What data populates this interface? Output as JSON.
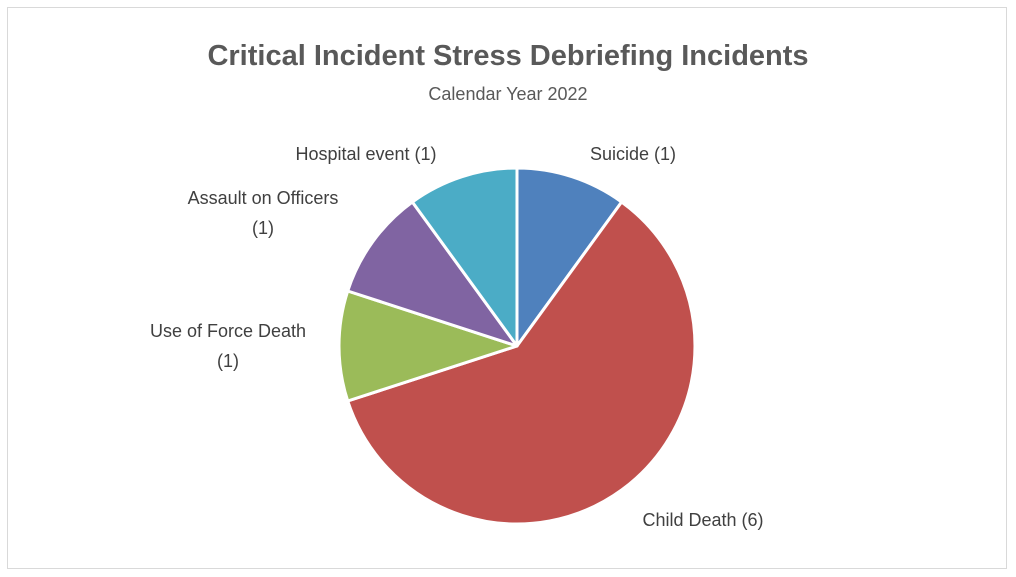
{
  "chart_data": {
    "type": "pie",
    "title": "Critical Incident Stress Debriefing Incidents",
    "subtitle": "Calendar Year 2022",
    "slices": [
      {
        "name": "Suicide",
        "value": 1,
        "color": "#4f81bd",
        "label_lines": [
          "Suicide (1)"
        ]
      },
      {
        "name": "Child Death",
        "value": 6,
        "color": "#c0504d",
        "label_lines": [
          "Child Death (6)"
        ]
      },
      {
        "name": "Use of Force Death",
        "value": 1,
        "color": "#9bbb59",
        "label_lines": [
          "Use of Force Death",
          "(1)"
        ]
      },
      {
        "name": "Assault on Officers",
        "value": 1,
        "color": "#8064a2",
        "label_lines": [
          "Assault on Officers",
          "(1)"
        ]
      },
      {
        "name": "Hospital event",
        "value": 1,
        "color": "#4bacc6",
        "label_lines": [
          "Hospital event (1)"
        ]
      }
    ],
    "start_angle_deg": 0,
    "direction": "clockwise",
    "legend": "none",
    "slice_border_color": "#ffffff"
  }
}
